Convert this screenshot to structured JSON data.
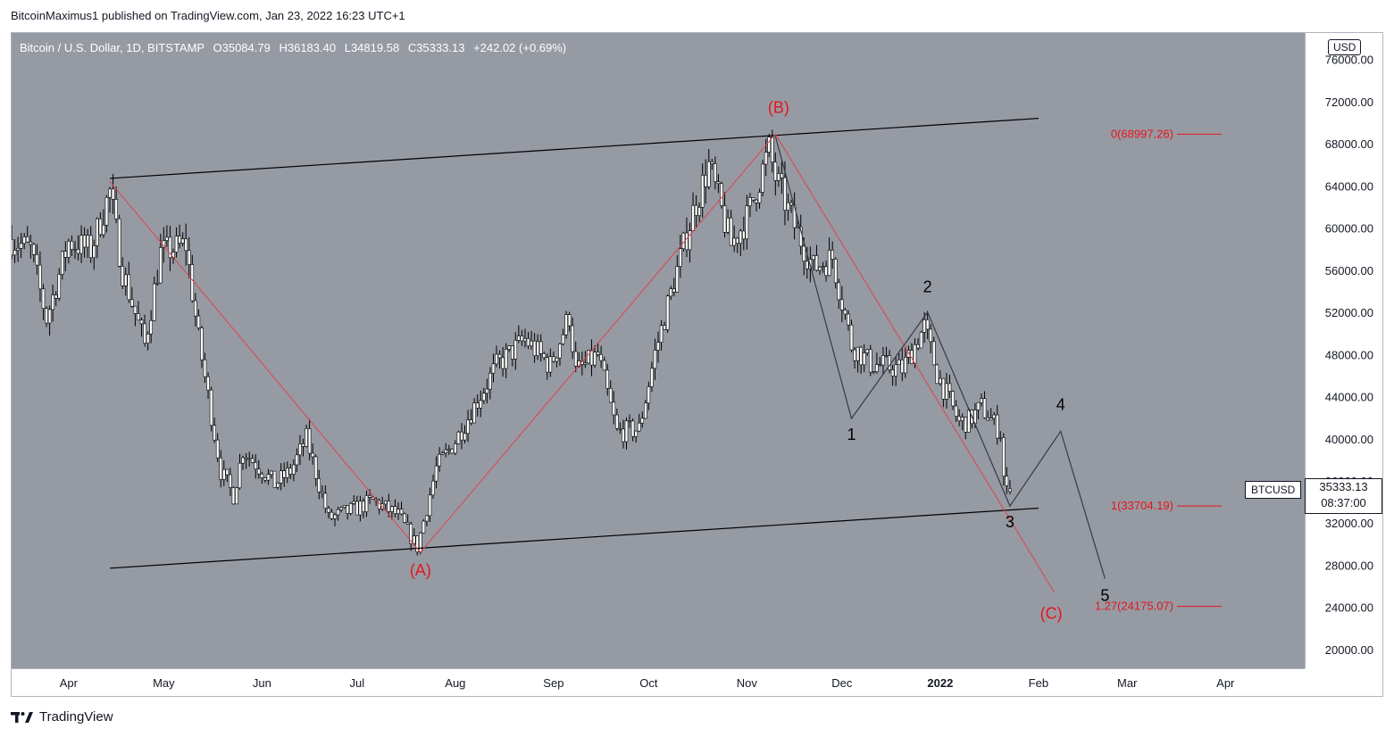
{
  "publisher_line": "BitcoinMaximus1 published on TradingView.com, Jan 23, 2022 16:23 UTC+1",
  "header": {
    "symbol": "Bitcoin / U.S. Dollar, 1D, BITSTAMP",
    "open_label": "O",
    "open_value": "35084.79",
    "high_label": "H",
    "high_value": "36183.40",
    "low_label": "L",
    "low_value": "34819.58",
    "close_label": "C",
    "close_value": "35333.13",
    "change": "+242.02 (+0.69%)"
  },
  "currency_badge": "USD",
  "price_tag": {
    "symbol": "BTCUSD",
    "price": "35333.13",
    "countdown": "08:37:00"
  },
  "footer": {
    "brand": "TradingView"
  },
  "colors": {
    "plot_background": "#969aa3",
    "candle_body": "#ffffff",
    "candle_wick": "#000000",
    "trend_line": "#000000",
    "abc_path": "#e0444a",
    "wave_path": "#363a45",
    "fib_level": "#e8141c",
    "abc_label": "#e8141c",
    "wave_label": "#000000"
  },
  "chart_data": {
    "type": "candlestick",
    "symbol": "BTCUSD",
    "timeframe": "1D",
    "y_axis": {
      "ticks": [
        "76000.00",
        "72000.00",
        "68000.00",
        "64000.00",
        "60000.00",
        "56000.00",
        "52000.00",
        "48000.00",
        "44000.00",
        "40000.00",
        "36000.00",
        "32000.00",
        "28000.00",
        "24000.00",
        "20000.00"
      ],
      "tick_values": [
        76000,
        72000,
        68000,
        64000,
        60000,
        56000,
        52000,
        48000,
        44000,
        40000,
        36000,
        32000,
        28000,
        24000,
        20000
      ],
      "range": [
        18300,
        78600
      ]
    },
    "x_axis": {
      "ticks": [
        "Apr",
        "May",
        "Jun",
        "Jul",
        "Aug",
        "Sep",
        "Oct",
        "Nov",
        "Dec",
        "2022",
        "Feb",
        "Mar",
        "Apr"
      ],
      "tick_dates": [
        "2021-04-01",
        "2021-05-01",
        "2021-06-01",
        "2021-07-01",
        "2021-08-01",
        "2021-09-01",
        "2021-10-01",
        "2021-11-01",
        "2021-12-01",
        "2022-01-01",
        "2022-02-01",
        "2022-03-01",
        "2022-04-01"
      ],
      "bold_tick": "2022",
      "range": [
        "2021-03-14",
        "2022-04-26"
      ]
    },
    "price_anchors": [
      [
        "2021-03-14",
        59000
      ],
      [
        "2021-03-20",
        58000
      ],
      [
        "2021-03-25",
        51500
      ],
      [
        "2021-04-01",
        58800
      ],
      [
        "2021-04-08",
        58000
      ],
      [
        "2021-04-14",
        63500
      ],
      [
        "2021-04-18",
        56000
      ],
      [
        "2021-04-25",
        49000
      ],
      [
        "2021-04-30",
        57700
      ],
      [
        "2021-05-08",
        58500
      ],
      [
        "2021-05-12",
        49500
      ],
      [
        "2021-05-19",
        37000
      ],
      [
        "2021-05-23",
        34700
      ],
      [
        "2021-05-26",
        39000
      ],
      [
        "2021-06-05",
        35800
      ],
      [
        "2021-06-10",
        37000
      ],
      [
        "2021-06-15",
        40100
      ],
      [
        "2021-06-22",
        32500
      ],
      [
        "2021-07-01",
        33500
      ],
      [
        "2021-07-06",
        34200
      ],
      [
        "2021-07-14",
        32800
      ],
      [
        "2021-07-20",
        29800
      ],
      [
        "2021-07-26",
        37300
      ],
      [
        "2021-08-01",
        39900
      ],
      [
        "2021-08-14",
        47000
      ],
      [
        "2021-08-23",
        49500
      ],
      [
        "2021-08-31",
        47000
      ],
      [
        "2021-09-06",
        51800
      ],
      [
        "2021-09-08",
        46400
      ],
      [
        "2021-09-15",
        48000
      ],
      [
        "2021-09-21",
        40700
      ],
      [
        "2021-09-28",
        41000
      ],
      [
        "2021-10-03",
        48200
      ],
      [
        "2021-10-09",
        55000
      ],
      [
        "2021-10-15",
        61600
      ],
      [
        "2021-10-20",
        66000
      ],
      [
        "2021-10-27",
        58500
      ],
      [
        "2021-11-01",
        61000
      ],
      [
        "2021-11-08",
        67500
      ],
      [
        "2021-11-10",
        64900
      ],
      [
        "2021-11-16",
        60300
      ],
      [
        "2021-11-22",
        56300
      ],
      [
        "2021-11-28",
        57300
      ],
      [
        "2021-12-04",
        49000
      ],
      [
        "2021-12-10",
        47200
      ],
      [
        "2021-12-20",
        46700
      ],
      [
        "2021-12-27",
        50700
      ],
      [
        "2021-12-31",
        46300
      ],
      [
        "2022-01-07",
        41600
      ],
      [
        "2022-01-10",
        41800
      ],
      [
        "2022-01-14",
        43100
      ],
      [
        "2022-01-20",
        40700
      ],
      [
        "2022-01-21",
        36500
      ],
      [
        "2022-01-22",
        35080
      ],
      [
        "2022-01-23",
        35333
      ]
    ],
    "trend_lines": [
      {
        "name": "upper-channel",
        "points": [
          [
            "2021-04-14",
            64800
          ],
          [
            "2022-02-01",
            70500
          ]
        ]
      },
      {
        "name": "lower-channel",
        "points": [
          [
            "2021-04-14",
            27800
          ],
          [
            "2022-02-01",
            33500
          ]
        ]
      }
    ],
    "abc_path": [
      [
        "2021-04-14",
        64500
      ],
      [
        "2021-07-21",
        29300
      ],
      [
        "2021-11-10",
        69000
      ],
      [
        "2022-02-06",
        25500
      ]
    ],
    "wave_path": [
      [
        "2021-11-10",
        68800
      ],
      [
        "2021-12-04",
        42000
      ],
      [
        "2021-12-28",
        52100
      ],
      [
        "2022-01-23",
        33700
      ],
      [
        "2022-02-08",
        40800
      ],
      [
        "2022-02-22",
        26800
      ]
    ],
    "annotations": [
      {
        "text": "(A)",
        "x": "2021-07-21",
        "y": 27100,
        "color": "abc"
      },
      {
        "text": "(B)",
        "x": "2021-11-11",
        "y": 71000,
        "color": "abc"
      },
      {
        "text": "(C)",
        "x": "2022-02-05",
        "y": 23000,
        "color": "abc"
      },
      {
        "text": "1",
        "x": "2021-12-04",
        "y": 40000,
        "color": "wave"
      },
      {
        "text": "2",
        "x": "2021-12-28",
        "y": 54000,
        "color": "wave"
      },
      {
        "text": "3",
        "x": "2022-01-23",
        "y": 31700,
        "color": "wave"
      },
      {
        "text": "4",
        "x": "2022-02-08",
        "y": 42800,
        "color": "wave"
      },
      {
        "text": "5",
        "x": "2022-02-22",
        "y": 24700,
        "color": "wave"
      }
    ],
    "fib_levels": [
      {
        "label": "0(68997.26)",
        "value": 68997.26
      },
      {
        "label": "1(33704.19)",
        "value": 33704.19
      },
      {
        "label": "1.27(24175.07)",
        "value": 24175.07
      }
    ]
  }
}
